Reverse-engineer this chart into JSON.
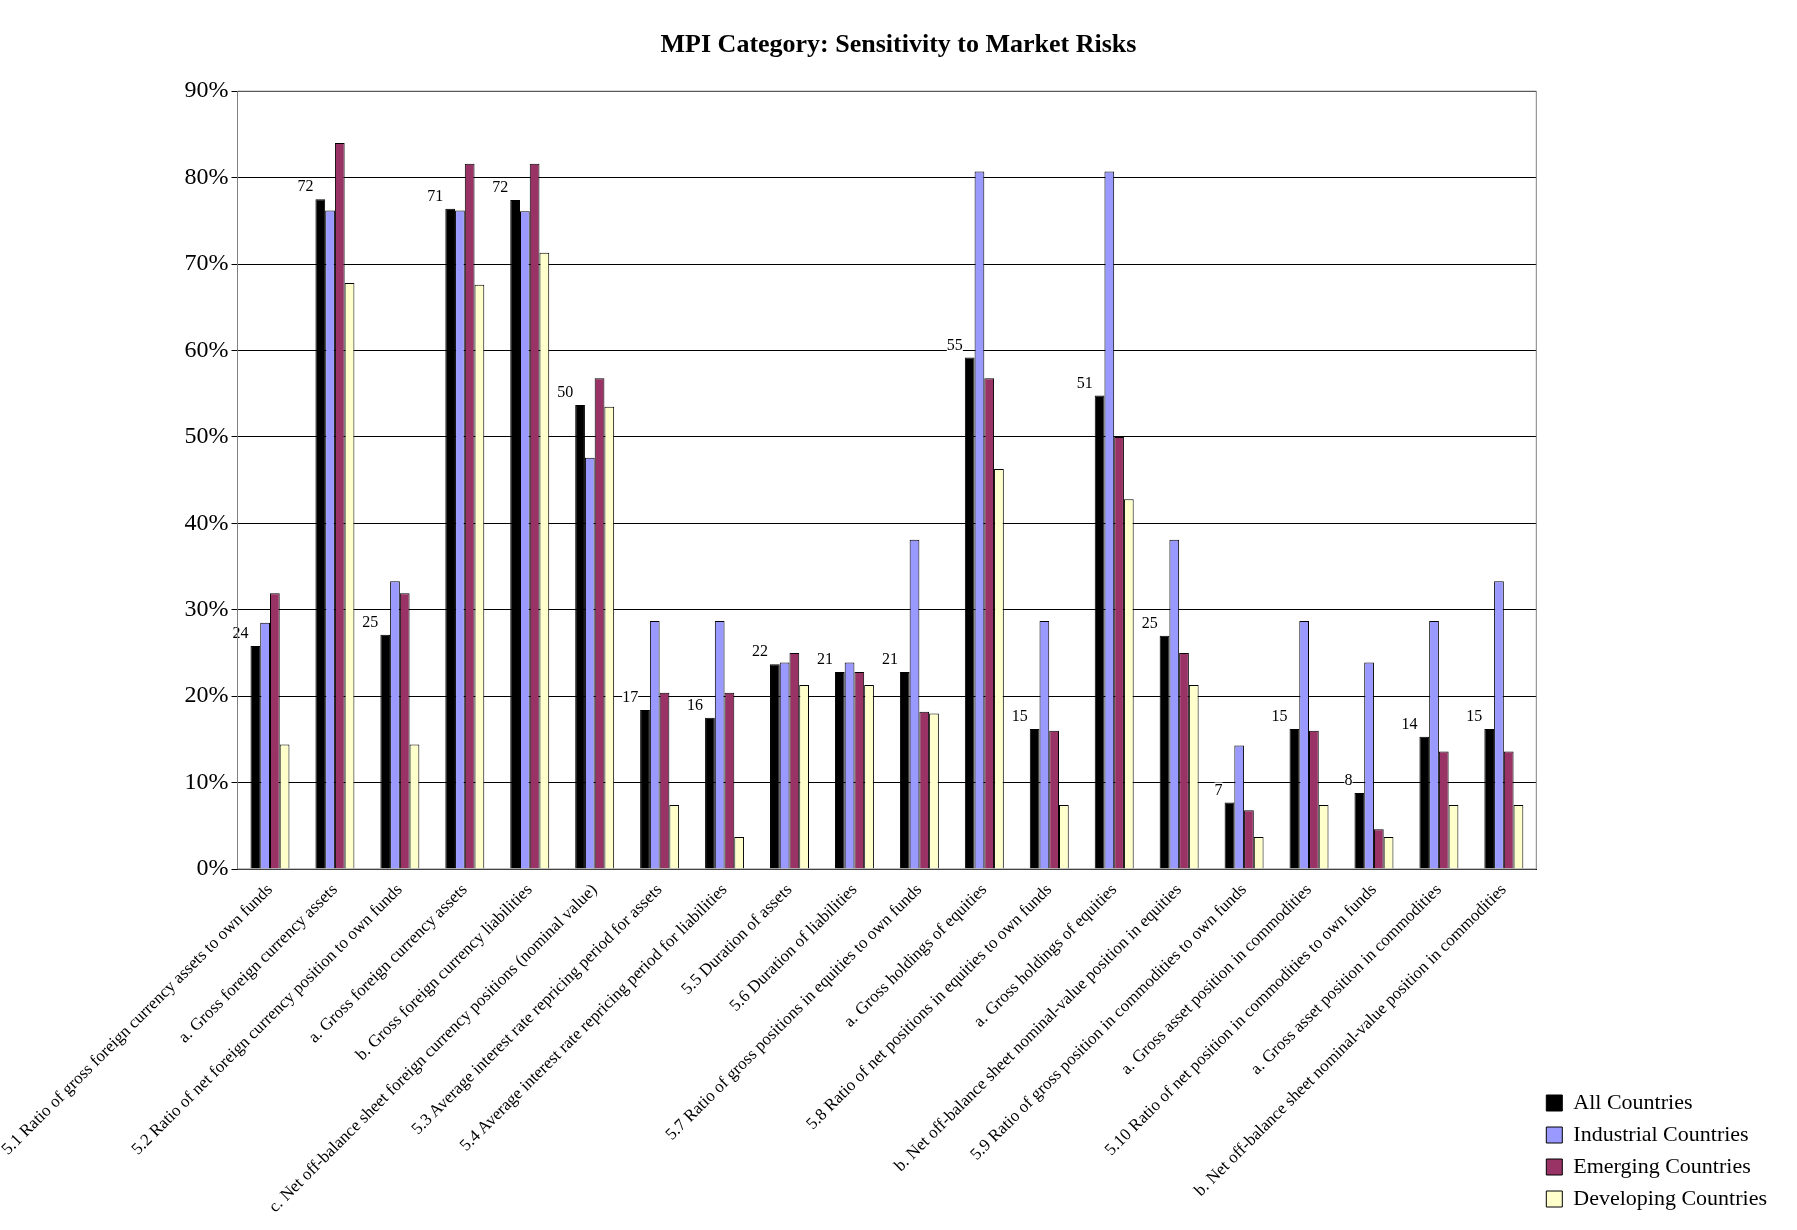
{
  "chart_data": {
    "type": "bar",
    "title": "MPI Category: Sensitivity to Market Risks",
    "categories": [
      "5.1 Ratio of gross foreign currency assets to own funds",
      "a. Gross foreign currency assets",
      "5.2 Ratio of net foreign currency position to own funds",
      "a. Gross foreign currency assets",
      "b. Gross foreign currency liabilities",
      "c. Net off-balance sheet foreign currency positions (nominal value)",
      "5.3 Average interest rate repricing period for assets",
      "5.4 Average interest rate repricing period for liabilities",
      "5.5 Duration of assets",
      "5.6 Duration of liabilities",
      "5.7 Ratio of gross positions in equities to own funds",
      "a. Gross holdings of equities",
      "5.8 Ratio of net positions in equities to own funds",
      "a. Gross holdings of equities",
      "b. Net off-balance sheet nominal-value position in equities",
      "5.9 Ratio of gross position in commodities to own funds",
      "a. Gross asset position in commodities",
      "5.10 Ratio of net position in commodities to own funds",
      "a. Gross asset position in commodities",
      "b. Net off-balance sheet nominal-value position in commodities"
    ],
    "series": [
      {
        "name": "All Countries",
        "color": "#000000",
        "values": [
          25.8,
          77.5,
          27.1,
          76.4,
          77.4,
          53.7,
          18.4,
          17.5,
          23.7,
          22.8,
          22.8,
          59.2,
          16.2,
          54.8,
          27.0,
          7.7,
          16.2,
          8.8,
          15.3,
          16.2
        ]
      },
      {
        "name": "Industrial Countries",
        "color": "#9999ff",
        "values": [
          28.5,
          76.2,
          33.3,
          76.2,
          76.1,
          47.6,
          28.7,
          28.7,
          23.9,
          23.9,
          38.1,
          80.7,
          28.7,
          80.7,
          38.1,
          14.3,
          28.7,
          23.9,
          28.7,
          33.3
        ]
      },
      {
        "name": "Emerging Countries",
        "color": "#993366",
        "values": [
          31.9,
          84.0,
          31.9,
          81.6,
          81.6,
          56.8,
          20.4,
          20.4,
          25.0,
          22.8,
          18.2,
          56.8,
          16.0,
          50.0,
          25.0,
          6.8,
          16.0,
          4.6,
          13.6,
          13.6
        ]
      },
      {
        "name": "Developing Countries",
        "color": "#ffffcc",
        "values": [
          14.4,
          67.8,
          14.4,
          67.6,
          71.3,
          53.5,
          7.4,
          3.7,
          21.3,
          21.3,
          18.0,
          46.3,
          7.4,
          42.8,
          21.3,
          3.7,
          7.4,
          3.7,
          7.4,
          7.4
        ]
      }
    ],
    "ylim": [
      0,
      90
    ],
    "yticks": [
      {
        "value": 0,
        "label": "0%"
      },
      {
        "value": 10,
        "label": "10%"
      },
      {
        "value": 20,
        "label": "20%"
      },
      {
        "value": 30,
        "label": "30%"
      },
      {
        "value": 40,
        "label": "40%"
      },
      {
        "value": 50,
        "label": "50%"
      },
      {
        "value": 60,
        "label": "60%"
      },
      {
        "value": 70,
        "label": "70%"
      },
      {
        "value": 80,
        "label": "80%"
      },
      {
        "value": 90,
        "label": "90%"
      }
    ],
    "grid": "y",
    "legend": "bottom right",
    "annotations": [
      "24",
      "72",
      "25",
      "71",
      "72",
      "50",
      "17",
      "16",
      "22",
      "21",
      "21",
      "55",
      "15",
      "51",
      "25",
      "7",
      "15",
      "8",
      "14",
      "15"
    ]
  }
}
